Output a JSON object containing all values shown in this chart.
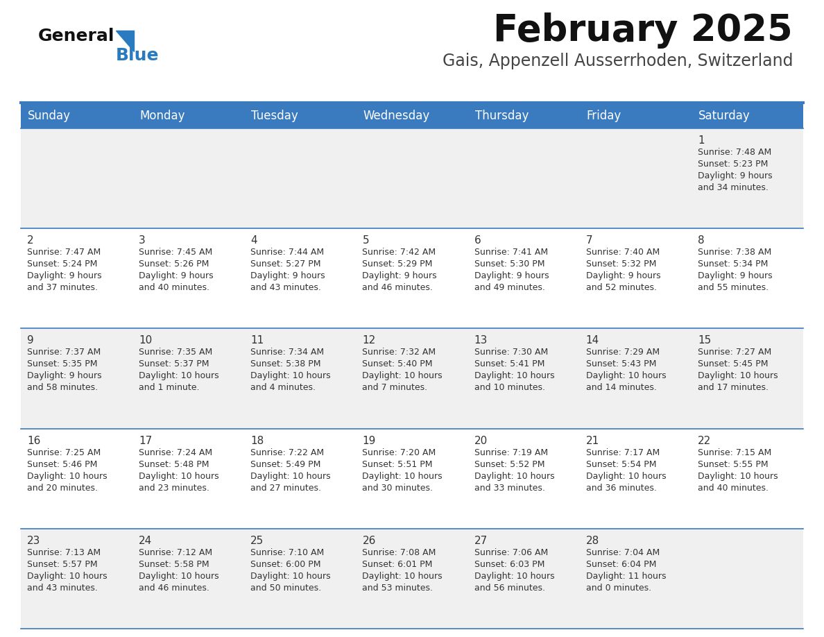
{
  "title": "February 2025",
  "subtitle": "Gais, Appenzell Ausserrhoden, Switzerland",
  "header_bg": "#3a7abf",
  "header_text_color": "#ffffff",
  "row_bg_odd": "#f0f0f0",
  "row_bg_even": "#ffffff",
  "separator_color": "#3a7abf",
  "text_color": "#333333",
  "days_of_week": [
    "Sunday",
    "Monday",
    "Tuesday",
    "Wednesday",
    "Thursday",
    "Friday",
    "Saturday"
  ],
  "weeks": [
    [
      {
        "day": "",
        "info": ""
      },
      {
        "day": "",
        "info": ""
      },
      {
        "day": "",
        "info": ""
      },
      {
        "day": "",
        "info": ""
      },
      {
        "day": "",
        "info": ""
      },
      {
        "day": "",
        "info": ""
      },
      {
        "day": "1",
        "info": "Sunrise: 7:48 AM\nSunset: 5:23 PM\nDaylight: 9 hours\nand 34 minutes."
      }
    ],
    [
      {
        "day": "2",
        "info": "Sunrise: 7:47 AM\nSunset: 5:24 PM\nDaylight: 9 hours\nand 37 minutes."
      },
      {
        "day": "3",
        "info": "Sunrise: 7:45 AM\nSunset: 5:26 PM\nDaylight: 9 hours\nand 40 minutes."
      },
      {
        "day": "4",
        "info": "Sunrise: 7:44 AM\nSunset: 5:27 PM\nDaylight: 9 hours\nand 43 minutes."
      },
      {
        "day": "5",
        "info": "Sunrise: 7:42 AM\nSunset: 5:29 PM\nDaylight: 9 hours\nand 46 minutes."
      },
      {
        "day": "6",
        "info": "Sunrise: 7:41 AM\nSunset: 5:30 PM\nDaylight: 9 hours\nand 49 minutes."
      },
      {
        "day": "7",
        "info": "Sunrise: 7:40 AM\nSunset: 5:32 PM\nDaylight: 9 hours\nand 52 minutes."
      },
      {
        "day": "8",
        "info": "Sunrise: 7:38 AM\nSunset: 5:34 PM\nDaylight: 9 hours\nand 55 minutes."
      }
    ],
    [
      {
        "day": "9",
        "info": "Sunrise: 7:37 AM\nSunset: 5:35 PM\nDaylight: 9 hours\nand 58 minutes."
      },
      {
        "day": "10",
        "info": "Sunrise: 7:35 AM\nSunset: 5:37 PM\nDaylight: 10 hours\nand 1 minute."
      },
      {
        "day": "11",
        "info": "Sunrise: 7:34 AM\nSunset: 5:38 PM\nDaylight: 10 hours\nand 4 minutes."
      },
      {
        "day": "12",
        "info": "Sunrise: 7:32 AM\nSunset: 5:40 PM\nDaylight: 10 hours\nand 7 minutes."
      },
      {
        "day": "13",
        "info": "Sunrise: 7:30 AM\nSunset: 5:41 PM\nDaylight: 10 hours\nand 10 minutes."
      },
      {
        "day": "14",
        "info": "Sunrise: 7:29 AM\nSunset: 5:43 PM\nDaylight: 10 hours\nand 14 minutes."
      },
      {
        "day": "15",
        "info": "Sunrise: 7:27 AM\nSunset: 5:45 PM\nDaylight: 10 hours\nand 17 minutes."
      }
    ],
    [
      {
        "day": "16",
        "info": "Sunrise: 7:25 AM\nSunset: 5:46 PM\nDaylight: 10 hours\nand 20 minutes."
      },
      {
        "day": "17",
        "info": "Sunrise: 7:24 AM\nSunset: 5:48 PM\nDaylight: 10 hours\nand 23 minutes."
      },
      {
        "day": "18",
        "info": "Sunrise: 7:22 AM\nSunset: 5:49 PM\nDaylight: 10 hours\nand 27 minutes."
      },
      {
        "day": "19",
        "info": "Sunrise: 7:20 AM\nSunset: 5:51 PM\nDaylight: 10 hours\nand 30 minutes."
      },
      {
        "day": "20",
        "info": "Sunrise: 7:19 AM\nSunset: 5:52 PM\nDaylight: 10 hours\nand 33 minutes."
      },
      {
        "day": "21",
        "info": "Sunrise: 7:17 AM\nSunset: 5:54 PM\nDaylight: 10 hours\nand 36 minutes."
      },
      {
        "day": "22",
        "info": "Sunrise: 7:15 AM\nSunset: 5:55 PM\nDaylight: 10 hours\nand 40 minutes."
      }
    ],
    [
      {
        "day": "23",
        "info": "Sunrise: 7:13 AM\nSunset: 5:57 PM\nDaylight: 10 hours\nand 43 minutes."
      },
      {
        "day": "24",
        "info": "Sunrise: 7:12 AM\nSunset: 5:58 PM\nDaylight: 10 hours\nand 46 minutes."
      },
      {
        "day": "25",
        "info": "Sunrise: 7:10 AM\nSunset: 6:00 PM\nDaylight: 10 hours\nand 50 minutes."
      },
      {
        "day": "26",
        "info": "Sunrise: 7:08 AM\nSunset: 6:01 PM\nDaylight: 10 hours\nand 53 minutes."
      },
      {
        "day": "27",
        "info": "Sunrise: 7:06 AM\nSunset: 6:03 PM\nDaylight: 10 hours\nand 56 minutes."
      },
      {
        "day": "28",
        "info": "Sunrise: 7:04 AM\nSunset: 6:04 PM\nDaylight: 11 hours\nand 0 minutes."
      },
      {
        "day": "",
        "info": ""
      }
    ]
  ],
  "logo_general_color": "#111111",
  "logo_blue_color": "#2a7abf",
  "logo_triangle_color": "#2a7abf",
  "title_fontsize": 38,
  "subtitle_fontsize": 17,
  "header_fontsize": 12,
  "day_num_fontsize": 11,
  "info_fontsize": 9
}
